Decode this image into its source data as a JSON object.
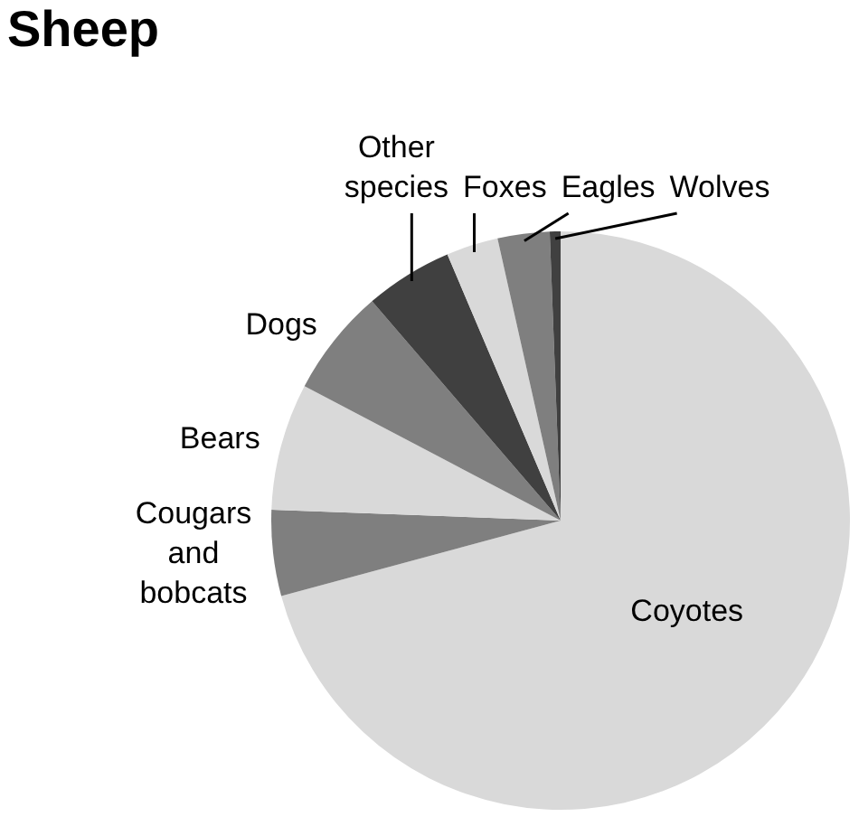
{
  "chart_data": {
    "type": "pie",
    "title": "Sheep",
    "categories": [
      "Coyotes",
      "Cougars and bobcats",
      "Bears",
      "Dogs",
      "Other species",
      "Foxes",
      "Eagles",
      "Wolves"
    ],
    "values": [
      70.8,
      4.8,
      7.1,
      6.0,
      4.9,
      2.9,
      2.9,
      0.6
    ],
    "colors": [
      "#d9d9d9",
      "#7f7f7f",
      "#d9d9d9",
      "#7f7f7f",
      "#404040",
      "#d9d9d9",
      "#7f7f7f",
      "#404040"
    ]
  }
}
